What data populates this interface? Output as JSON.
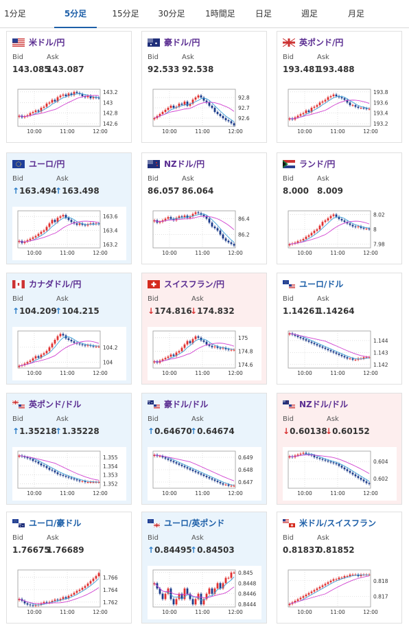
{
  "tabs": [
    {
      "label": "1分足",
      "active": false
    },
    {
      "label": "5分足",
      "active": true
    },
    {
      "label": "15分足",
      "active": false
    },
    {
      "label": "30分足",
      "active": false
    },
    {
      "label": "1時間足",
      "active": false
    },
    {
      "label": "日足",
      "active": false
    },
    {
      "label": "週足",
      "active": false
    },
    {
      "label": "月足",
      "active": false
    }
  ],
  "labels": {
    "bid": "Bid",
    "ask": "Ask"
  },
  "colors": {
    "candle_up": "#e03030",
    "candle_down": "#1a3a8a",
    "ma_short": "#3aa0d8",
    "ma_long": "#d040d0",
    "pair_purple": "#5a2d91",
    "pair_blue": "#1d5fa8",
    "up_bg": "#eaf4fc",
    "down_bg": "#fdeeee"
  },
  "cards": [
    {
      "pair": "米ドル/円",
      "flag": "us",
      "state": "none",
      "bid": "143.085",
      "ask": "143.087",
      "arrow": "",
      "name_color": "purple",
      "chart_data": {
        "type": "candlestick",
        "x_ticks": [
          "10:00",
          "11:00",
          "12:00"
        ],
        "y_ticks": [
          "143.2",
          "143",
          "142.8",
          "142.6"
        ],
        "y_range": [
          142.55,
          143.25
        ],
        "close": [
          142.75,
          142.72,
          142.74,
          142.76,
          142.8,
          142.82,
          142.85,
          142.83,
          142.9,
          142.92,
          142.98,
          143.0,
          143.05,
          143.02,
          143.1,
          143.13,
          143.15,
          143.12,
          143.17,
          143.14,
          143.2,
          143.18,
          143.16,
          143.12,
          143.1,
          143.13,
          143.08,
          143.1,
          143.09,
          143.08
        ]
      }
    },
    {
      "pair": "豪ドル/円",
      "flag": "au",
      "state": "none",
      "bid": "92.533",
      "ask": "92.538",
      "arrow": "",
      "name_color": "purple",
      "chart_data": {
        "type": "candlestick",
        "x_ticks": [
          "10:00",
          "11:00",
          "12:00"
        ],
        "y_ticks": [
          "92.8",
          "92.7",
          "92.6"
        ],
        "y_range": [
          92.52,
          92.88
        ],
        "close": [
          92.6,
          92.62,
          92.64,
          92.66,
          92.68,
          92.7,
          92.72,
          92.7,
          92.71,
          92.74,
          92.73,
          92.76,
          92.72,
          92.74,
          92.78,
          92.8,
          92.82,
          92.8,
          92.77,
          92.75,
          92.72,
          92.7,
          92.66,
          92.64,
          92.62,
          92.6,
          92.58,
          92.57,
          92.55,
          92.53
        ]
      }
    },
    {
      "pair": "英ポンド/円",
      "flag": "gb",
      "state": "none",
      "bid": "193.481",
      "ask": "193.488",
      "arrow": "",
      "name_color": "purple",
      "chart_data": {
        "type": "candlestick",
        "x_ticks": [
          "10:00",
          "11:00",
          "12:00"
        ],
        "y_ticks": [
          "193.8",
          "193.6",
          "193.4",
          "193.2"
        ],
        "y_range": [
          193.15,
          193.85
        ],
        "close": [
          193.3,
          193.28,
          193.32,
          193.35,
          193.38,
          193.4,
          193.45,
          193.42,
          193.5,
          193.52,
          193.55,
          193.6,
          193.62,
          193.65,
          193.7,
          193.72,
          193.75,
          193.72,
          193.7,
          193.68,
          193.65,
          193.6,
          193.55,
          193.55,
          193.52,
          193.5,
          193.5,
          193.49,
          193.48,
          193.48
        ]
      }
    },
    {
      "pair": "ユーロ/円",
      "flag": "eu",
      "state": "up",
      "bid": "163.494",
      "ask": "163.498",
      "arrow": "↑",
      "name_color": "purple",
      "chart_data": {
        "type": "candlestick",
        "x_ticks": [
          "10:00",
          "11:00",
          "12:00"
        ],
        "y_ticks": [
          "163.6",
          "163.4",
          "163.2"
        ],
        "y_range": [
          163.15,
          163.68
        ],
        "close": [
          163.25,
          163.22,
          163.24,
          163.26,
          163.28,
          163.3,
          163.32,
          163.35,
          163.38,
          163.4,
          163.45,
          163.5,
          163.55,
          163.52,
          163.58,
          163.6,
          163.62,
          163.58,
          163.55,
          163.52,
          163.5,
          163.48,
          163.5,
          163.48,
          163.47,
          163.49,
          163.5,
          163.49,
          163.5,
          163.49
        ]
      }
    },
    {
      "pair": "NZドル/円",
      "flag": "nz",
      "state": "none",
      "bid": "86.057",
      "ask": "86.064",
      "arrow": "",
      "name_color": "purple",
      "chart_data": {
        "type": "candlestick",
        "x_ticks": [
          "10:00",
          "11:00",
          "12:00"
        ],
        "y_ticks": [
          "86.4",
          "86.2"
        ],
        "y_range": [
          86.03,
          86.5
        ],
        "close": [
          86.38,
          86.35,
          86.36,
          86.38,
          86.4,
          86.42,
          86.4,
          86.38,
          86.41,
          86.43,
          86.42,
          86.44,
          86.41,
          86.43,
          86.46,
          86.48,
          86.47,
          86.45,
          86.43,
          86.4,
          86.35,
          86.3,
          86.28,
          86.25,
          86.2,
          86.15,
          86.12,
          86.1,
          86.08,
          86.06
        ]
      }
    },
    {
      "pair": "ランド/円",
      "flag": "za",
      "state": "none",
      "bid": "8.000",
      "ask": "8.009",
      "arrow": "",
      "name_color": "purple",
      "chart_data": {
        "type": "candlestick",
        "x_ticks": [
          "10:00",
          "11:00",
          "12:00"
        ],
        "y_ticks": [
          "8.02",
          "8",
          "7.98"
        ],
        "y_range": [
          7.975,
          8.025
        ],
        "close": [
          7.98,
          7.981,
          7.982,
          7.984,
          7.985,
          7.987,
          7.99,
          7.992,
          7.995,
          7.998,
          8.0,
          8.005,
          8.01,
          8.012,
          8.015,
          8.018,
          8.02,
          8.017,
          8.014,
          8.012,
          8.01,
          8.008,
          8.006,
          8.004,
          8.003,
          8.004,
          8.002,
          8.001,
          8.001,
          8.0
        ]
      }
    },
    {
      "pair": "カナダドル/円",
      "flag": "ca",
      "state": "up",
      "bid": "104.209",
      "ask": "104.215",
      "arrow": "↑",
      "name_color": "purple",
      "chart_data": {
        "type": "candlestick",
        "x_ticks": [
          "10:00",
          "11:00",
          "12:00"
        ],
        "y_ticks": [
          "104.2",
          "104"
        ],
        "y_range": [
          103.92,
          104.42
        ],
        "close": [
          103.95,
          103.96,
          103.98,
          104.0,
          104.02,
          104.05,
          104.08,
          104.06,
          104.1,
          104.12,
          104.15,
          104.2,
          104.25,
          104.3,
          104.35,
          104.38,
          104.36,
          104.32,
          104.3,
          104.28,
          104.26,
          104.25,
          104.24,
          104.23,
          104.22,
          104.23,
          104.22,
          104.21,
          104.21,
          104.21
        ]
      }
    },
    {
      "pair": "スイスフラン/円",
      "flag": "ch",
      "state": "down",
      "bid": "174.816",
      "ask": "174.832",
      "arrow": "↓",
      "name_color": "purple",
      "chart_data": {
        "type": "candlestick",
        "x_ticks": [
          "10:00",
          "11:00",
          "12:00"
        ],
        "y_ticks": [
          "175",
          "174.8",
          "174.6"
        ],
        "y_range": [
          174.55,
          175.1
        ],
        "close": [
          174.65,
          174.63,
          174.66,
          174.68,
          174.7,
          174.72,
          174.75,
          174.73,
          174.78,
          174.8,
          174.85,
          174.9,
          174.95,
          174.92,
          174.98,
          175.02,
          175.0,
          174.96,
          174.94,
          174.9,
          174.88,
          174.86,
          174.87,
          174.85,
          174.84,
          174.85,
          174.83,
          174.82,
          174.82,
          174.82
        ]
      }
    },
    {
      "pair": "ユーロ/ドル",
      "flag": "eu-us",
      "state": "none",
      "bid": "1.14261",
      "ask": "1.14264",
      "arrow": "",
      "name_color": "blue",
      "chart_data": {
        "type": "candlestick",
        "x_ticks": [
          "10:00",
          "11:00",
          "12:00"
        ],
        "y_ticks": [
          "1.144",
          "1.143",
          "1.142"
        ],
        "y_range": [
          1.1417,
          1.1448
        ],
        "close": [
          1.1446,
          1.1445,
          1.1444,
          1.1443,
          1.1442,
          1.1441,
          1.144,
          1.1439,
          1.1438,
          1.1437,
          1.1436,
          1.1435,
          1.1434,
          1.1433,
          1.1432,
          1.1431,
          1.143,
          1.1429,
          1.1428,
          1.1427,
          1.1426,
          1.1425,
          1.1425,
          1.1424,
          1.1424,
          1.1425,
          1.1425,
          1.1426,
          1.1426,
          1.1426
        ]
      }
    },
    {
      "pair": "英ポンド/ドル",
      "flag": "gb-us",
      "state": "up",
      "bid": "1.35218",
      "ask": "1.35228",
      "arrow": "↑",
      "name_color": "purple",
      "chart_data": {
        "type": "candlestick",
        "x_ticks": [
          "10:00",
          "11:00",
          "12:00"
        ],
        "y_ticks": [
          "1.355",
          "1.354",
          "1.353",
          "1.352"
        ],
        "y_range": [
          1.3515,
          1.3557
        ],
        "close": [
          1.3552,
          1.3551,
          1.355,
          1.3549,
          1.3548,
          1.3546,
          1.3545,
          1.3543,
          1.3541,
          1.354,
          1.3538,
          1.3536,
          1.3535,
          1.3533,
          1.3531,
          1.353,
          1.3529,
          1.3528,
          1.3527,
          1.3526,
          1.3525,
          1.3524,
          1.3523,
          1.3523,
          1.3522,
          1.3522,
          1.3522,
          1.3522,
          1.3522,
          1.3522
        ]
      }
    },
    {
      "pair": "豪ドル/ドル",
      "flag": "au-us",
      "state": "up",
      "bid": "0.64670",
      "ask": "0.64674",
      "arrow": "↑",
      "name_color": "purple",
      "chart_data": {
        "type": "candlestick",
        "x_ticks": [
          "10:00",
          "11:00",
          "12:00"
        ],
        "y_ticks": [
          "0.649",
          "0.648",
          "0.647"
        ],
        "y_range": [
          0.6465,
          0.6495
        ],
        "close": [
          0.6492,
          0.6491,
          0.6491,
          0.649,
          0.6489,
          0.6488,
          0.6487,
          0.6486,
          0.6485,
          0.6484,
          0.6483,
          0.6482,
          0.6481,
          0.648,
          0.6479,
          0.6478,
          0.6477,
          0.6476,
          0.6475,
          0.6474,
          0.6473,
          0.6472,
          0.6471,
          0.647,
          0.6469,
          0.6468,
          0.6468,
          0.6467,
          0.6467,
          0.6467
        ]
      }
    },
    {
      "pair": "NZドル/ドル",
      "flag": "nz-us",
      "state": "down",
      "bid": "0.60138",
      "ask": "0.60152",
      "arrow": "↓",
      "name_color": "purple",
      "chart_data": {
        "type": "candlestick",
        "x_ticks": [
          "10:00",
          "11:00",
          "12:00"
        ],
        "y_ticks": [
          "0.604",
          "0.602"
        ],
        "y_range": [
          0.6009,
          0.6052
        ],
        "close": [
          0.6046,
          0.6045,
          0.6047,
          0.6048,
          0.6049,
          0.605,
          0.6049,
          0.6048,
          0.6047,
          0.6045,
          0.6044,
          0.6043,
          0.6042,
          0.6041,
          0.604,
          0.6039,
          0.6038,
          0.6037,
          0.6035,
          0.6033,
          0.6031,
          0.6029,
          0.6027,
          0.6025,
          0.6023,
          0.6021,
          0.6019,
          0.6017,
          0.6015,
          0.6014
        ]
      }
    },
    {
      "pair": "ユーロ/豪ドル",
      "flag": "eu-au",
      "state": "none",
      "bid": "1.76675",
      "ask": "1.76689",
      "arrow": "",
      "name_color": "blue",
      "chart_data": {
        "type": "candlestick",
        "x_ticks": [
          "10:00",
          "11:00",
          "12:00"
        ],
        "y_ticks": [
          "1.766",
          "1.764",
          "1.762"
        ],
        "y_range": [
          1.7612,
          1.7672
        ],
        "close": [
          1.7625,
          1.7622,
          1.7618,
          1.7616,
          1.7615,
          1.7614,
          1.7615,
          1.7616,
          1.7618,
          1.762,
          1.7619,
          1.762,
          1.7622,
          1.7624,
          1.7623,
          1.7625,
          1.7628,
          1.7626,
          1.763,
          1.7632,
          1.7635,
          1.7638,
          1.764,
          1.7643,
          1.7646,
          1.765,
          1.7654,
          1.7658,
          1.7662,
          1.7667
        ]
      }
    },
    {
      "pair": "ユーロ/英ポンド",
      "flag": "eu-gb",
      "state": "up",
      "bid": "0.84495",
      "ask": "0.84503",
      "arrow": "↑",
      "name_color": "blue",
      "chart_data": {
        "type": "candlestick",
        "x_ticks": [
          "10:00",
          "11:00",
          "12:00"
        ],
        "y_ticks": [
          "0.845",
          "0.8448",
          "0.8446",
          "0.8444"
        ],
        "y_range": [
          0.84435,
          0.84505
        ],
        "close": [
          0.8448,
          0.8447,
          0.8446,
          0.8445,
          0.8446,
          0.8447,
          0.8445,
          0.8444,
          0.8445,
          0.8446,
          0.8445,
          0.8447,
          0.8446,
          0.8445,
          0.8444,
          0.8445,
          0.8446,
          0.8444,
          0.8445,
          0.8446,
          0.8447,
          0.8446,
          0.8447,
          0.8448,
          0.8447,
          0.8448,
          0.8449,
          0.8449,
          0.845,
          0.845
        ]
      }
    },
    {
      "pair": "米ドル/スイスフラン",
      "flag": "us-ch",
      "state": "none",
      "bid": "0.81837",
      "ask": "0.81852",
      "arrow": "",
      "name_color": "blue",
      "chart_data": {
        "type": "candlestick",
        "x_ticks": [
          "10:00",
          "11:00",
          "12:00"
        ],
        "y_ticks": [
          "0.818",
          "0.817"
        ],
        "y_range": [
          0.8163,
          0.8187
        ],
        "close": [
          0.8165,
          0.8166,
          0.8167,
          0.8168,
          0.8169,
          0.817,
          0.8171,
          0.8172,
          0.8173,
          0.8174,
          0.8175,
          0.8176,
          0.8177,
          0.8178,
          0.8179,
          0.818,
          0.8181,
          0.8181,
          0.8182,
          0.8182,
          0.8183,
          0.8183,
          0.8184,
          0.8184,
          0.8184,
          0.8183,
          0.8184,
          0.8184,
          0.8184,
          0.8184
        ]
      }
    }
  ]
}
